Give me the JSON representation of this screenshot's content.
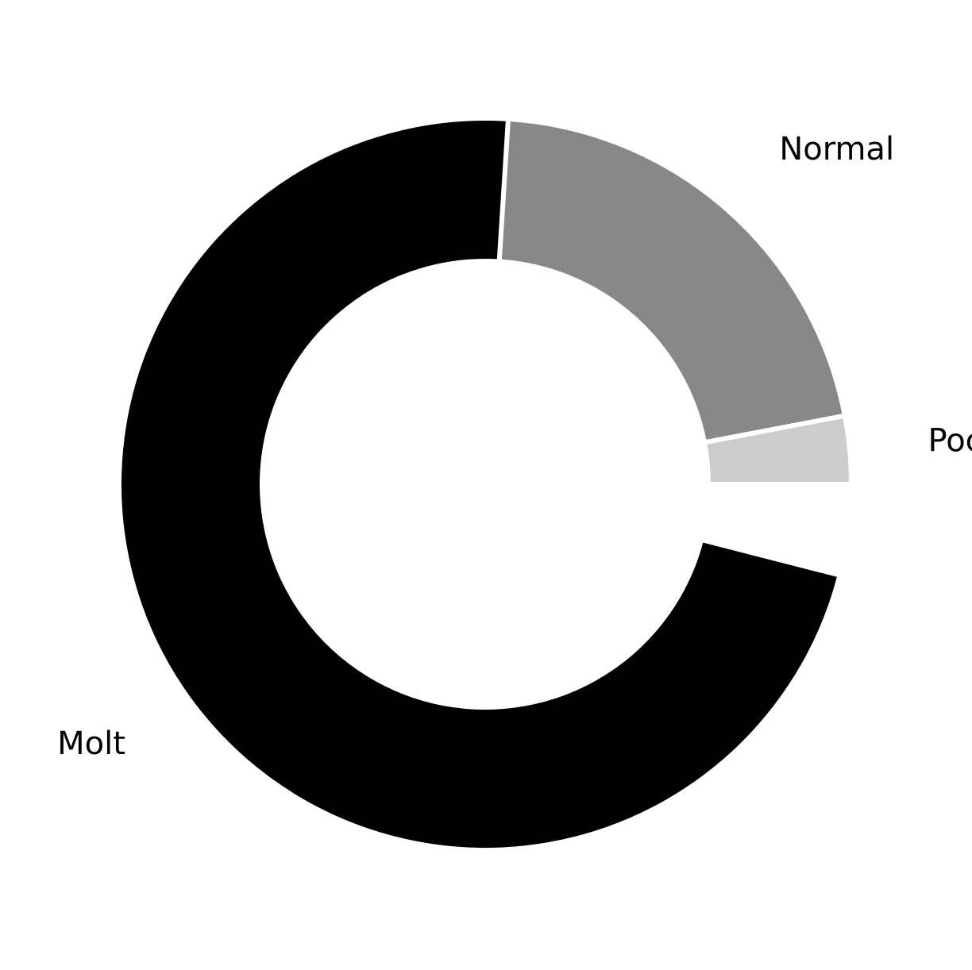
{
  "chart_data": {
    "type": "pie",
    "donut": true,
    "start_angle_deg": 0,
    "direction": "counterclockwise",
    "gap_after_last_slice": true,
    "slices": [
      {
        "label": "Poc",
        "value": 3,
        "color": "#cccccc"
      },
      {
        "label": "Normal",
        "value": 21,
        "color": "#888888"
      },
      {
        "label": "Molt",
        "value": 72,
        "color": "#000000"
      }
    ],
    "legend": "none",
    "grid": false
  }
}
